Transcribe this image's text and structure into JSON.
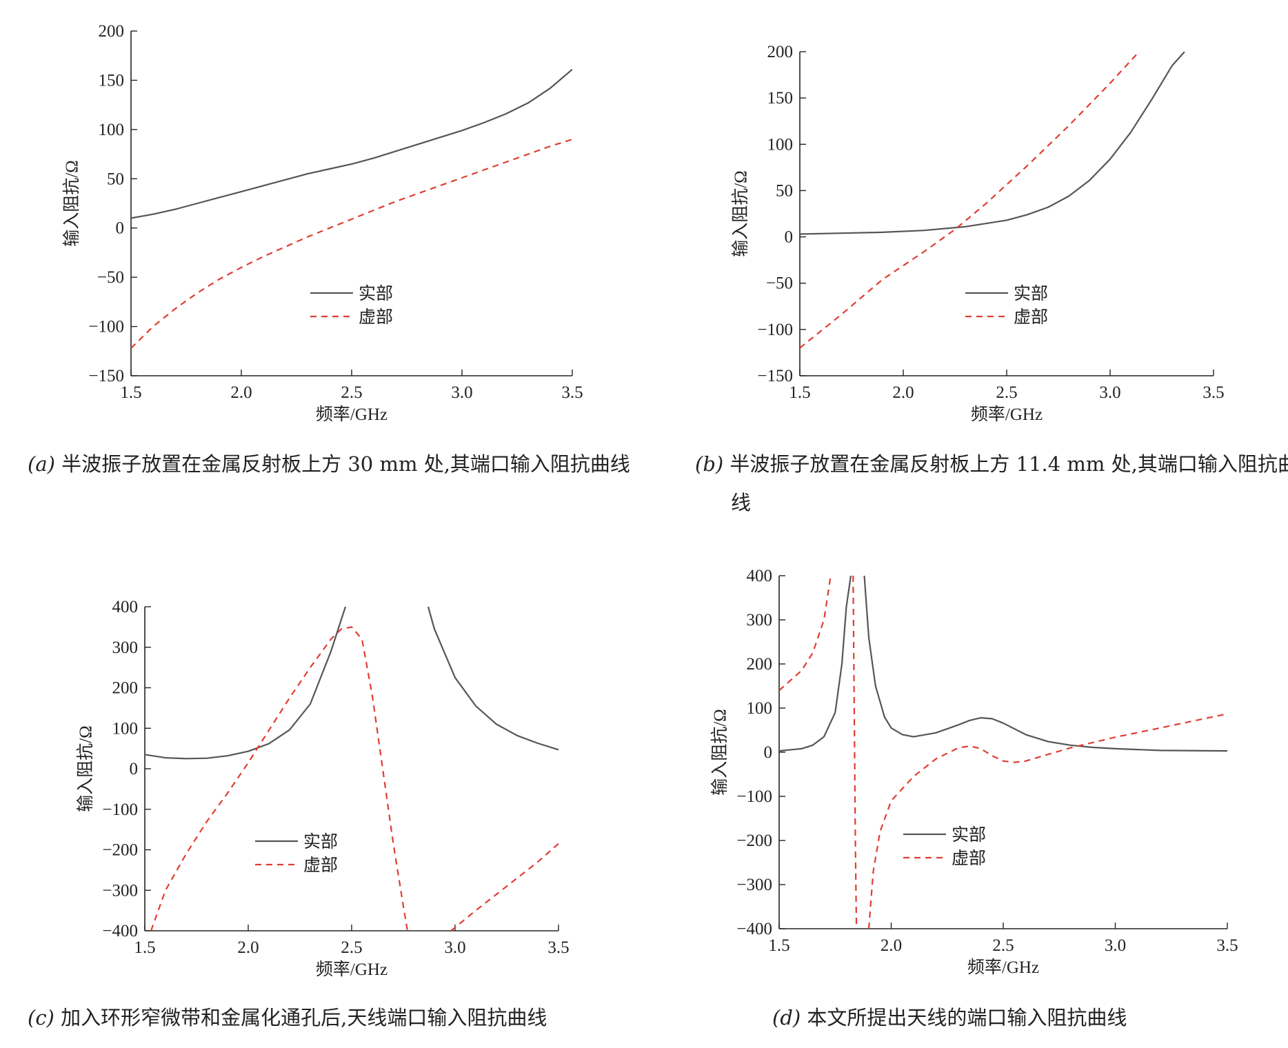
{
  "chart_data": [
    {
      "type": "line",
      "caption_tag": "(a)",
      "caption_text": "半波振子放置在金属反射板上方 30 mm 处,其端口输入阻抗曲线",
      "xlabel": "频率/GHz",
      "ylabel": "输入阻抗/Ω",
      "xlim": [
        1.5,
        3.5
      ],
      "ylim": [
        -150,
        200
      ],
      "xticks": [
        1.5,
        2.0,
        2.5,
        3.0,
        3.5
      ],
      "yticks": [
        -150,
        -100,
        -50,
        0,
        50,
        100,
        150,
        200
      ],
      "legend_position": "center",
      "series": [
        {
          "name": "实部",
          "color": "#555555",
          "dash": "solid",
          "x": [
            1.5,
            1.6,
            1.7,
            1.8,
            1.9,
            2.0,
            2.1,
            2.2,
            2.3,
            2.4,
            2.5,
            2.6,
            2.7,
            2.8,
            2.9,
            3.0,
            3.1,
            3.2,
            3.3,
            3.4,
            3.5
          ],
          "y": [
            10,
            14,
            19,
            25,
            31,
            37,
            43,
            49,
            55,
            60,
            65,
            71,
            78,
            85,
            92,
            99,
            107,
            116,
            127,
            142,
            161
          ]
        },
        {
          "name": "虚部",
          "color": "#e03c31",
          "dash": "dashed",
          "x": [
            1.5,
            1.6,
            1.7,
            1.8,
            1.9,
            2.0,
            2.1,
            2.2,
            2.3,
            2.4,
            2.5,
            2.6,
            2.7,
            2.8,
            2.9,
            3.0,
            3.1,
            3.2,
            3.3,
            3.4,
            3.5
          ],
          "y": [
            -122,
            -100,
            -82,
            -66,
            -52,
            -40,
            -29,
            -19,
            -9,
            0,
            9,
            18,
            27,
            35,
            43,
            51,
            59,
            67,
            75,
            83,
            90
          ]
        }
      ]
    },
    {
      "type": "line",
      "caption_tag": "(b)",
      "caption_text": "半波振子放置在金属反射板上方 11.4 mm 处,其端口输入阻抗曲线",
      "xlabel": "频率/GHz",
      "ylabel": "输入阻抗/Ω",
      "xlim": [
        1.5,
        3.5
      ],
      "ylim": [
        -150,
        200
      ],
      "xticks": [
        1.5,
        2.0,
        2.5,
        3.0,
        3.5
      ],
      "yticks": [
        -150,
        -100,
        -50,
        0,
        50,
        100,
        150,
        200
      ],
      "legend_position": "center-right",
      "series": [
        {
          "name": "实部",
          "color": "#555555",
          "dash": "solid",
          "x": [
            1.5,
            1.7,
            1.9,
            2.1,
            2.3,
            2.5,
            2.6,
            2.7,
            2.8,
            2.9,
            3.0,
            3.1,
            3.2,
            3.3,
            3.36
          ],
          "y": [
            3,
            4,
            5,
            7,
            11,
            18,
            24,
            32,
            44,
            61,
            84,
            113,
            148,
            185,
            200
          ]
        },
        {
          "name": "虚部",
          "color": "#e03c31",
          "dash": "dashed",
          "x": [
            1.5,
            1.7,
            1.9,
            2.1,
            2.25,
            2.4,
            2.6,
            2.8,
            3.0,
            3.14
          ],
          "y": [
            -120,
            -84,
            -46,
            -16,
            8,
            36,
            77,
            120,
            166,
            200
          ]
        }
      ]
    },
    {
      "type": "line",
      "caption_tag": "(c)",
      "caption_text": "加入环形窄微带和金属化通孔后,天线端口输入阻抗曲线",
      "xlabel": "频率/GHz",
      "ylabel": "输入阻抗/Ω",
      "xlim": [
        1.5,
        3.5
      ],
      "ylim": [
        -400,
        400
      ],
      "xticks": [
        1.5,
        2.0,
        2.5,
        3.0,
        3.5
      ],
      "yticks": [
        -400,
        -300,
        -200,
        -100,
        0,
        100,
        200,
        300,
        400
      ],
      "legend_position": "lower-center",
      "series": [
        {
          "name": "实部",
          "color": "#555555",
          "dash": "solid",
          "x": [
            1.5,
            1.6,
            1.7,
            1.8,
            1.9,
            2.0,
            2.1,
            2.2,
            2.3,
            2.4,
            2.47,
            null,
            2.87,
            2.9,
            3.0,
            3.1,
            3.2,
            3.3,
            3.4,
            3.5
          ],
          "y": [
            35,
            27,
            25,
            26,
            32,
            43,
            62,
            96,
            160,
            290,
            400,
            null,
            400,
            345,
            225,
            155,
            110,
            82,
            63,
            47
          ]
        },
        {
          "name": "虚部",
          "color": "#e03c31",
          "dash": "dashed",
          "x": [
            1.53,
            1.6,
            1.7,
            1.8,
            1.9,
            2.0,
            2.1,
            2.2,
            2.3,
            2.4,
            2.45,
            2.5,
            2.55,
            2.6,
            2.65,
            2.7,
            2.75,
            2.77,
            null,
            2.98,
            3.1,
            3.2,
            3.3,
            3.4,
            3.5
          ],
          "y": [
            -400,
            -300,
            -210,
            -130,
            -60,
            15,
            95,
            175,
            250,
            320,
            345,
            350,
            320,
            180,
            0,
            -180,
            -340,
            -400,
            null,
            -400,
            -350,
            -310,
            -270,
            -230,
            -185
          ]
        }
      ]
    },
    {
      "type": "line",
      "caption_tag": "(d)",
      "caption_text": "本文所提出天线的端口输入阻抗曲线",
      "xlabel": "频率/GHz",
      "ylabel": "输入阻抗/Ω",
      "xlim": [
        1.5,
        3.5
      ],
      "ylim": [
        -400,
        400
      ],
      "xticks": [
        1.5,
        2.0,
        2.5,
        3.0,
        3.5
      ],
      "yticks": [
        -400,
        -300,
        -200,
        -100,
        0,
        100,
        200,
        300,
        400
      ],
      "legend_position": "lower-left",
      "series": [
        {
          "name": "实部",
          "color": "#555555",
          "dash": "solid",
          "x": [
            1.5,
            1.6,
            1.65,
            1.7,
            1.75,
            1.78,
            1.8,
            1.82,
            null,
            1.88,
            1.9,
            1.93,
            1.97,
            2.0,
            2.05,
            2.1,
            2.2,
            2.3,
            2.35,
            2.4,
            2.45,
            2.5,
            2.6,
            2.7,
            2.8,
            2.9,
            3.0,
            3.2,
            3.5
          ],
          "y": [
            3,
            8,
            16,
            35,
            90,
            200,
            330,
            400,
            null,
            400,
            260,
            150,
            80,
            55,
            40,
            35,
            44,
            62,
            72,
            78,
            76,
            66,
            40,
            24,
            16,
            11,
            8,
            4,
            3
          ]
        },
        {
          "name": "虚部",
          "color": "#e03c31",
          "dash": "dashed",
          "x": [
            1.5,
            1.6,
            1.65,
            1.7,
            1.73,
            null,
            1.83,
            1.835,
            1.84,
            1.845,
            null,
            1.9,
            1.92,
            1.95,
            2.0,
            2.1,
            2.2,
            2.3,
            2.35,
            2.4,
            2.45,
            2.5,
            2.55,
            2.6,
            2.7,
            2.8,
            2.9,
            3.0,
            3.2,
            3.5
          ],
          "y": [
            140,
            185,
            225,
            300,
            400,
            null,
            400,
            100,
            -200,
            -400,
            null,
            -400,
            -270,
            -180,
            -110,
            -55,
            -15,
            10,
            14,
            8,
            -8,
            -20,
            -23,
            -20,
            -5,
            10,
            22,
            34,
            55,
            87
          ]
        }
      ]
    }
  ]
}
